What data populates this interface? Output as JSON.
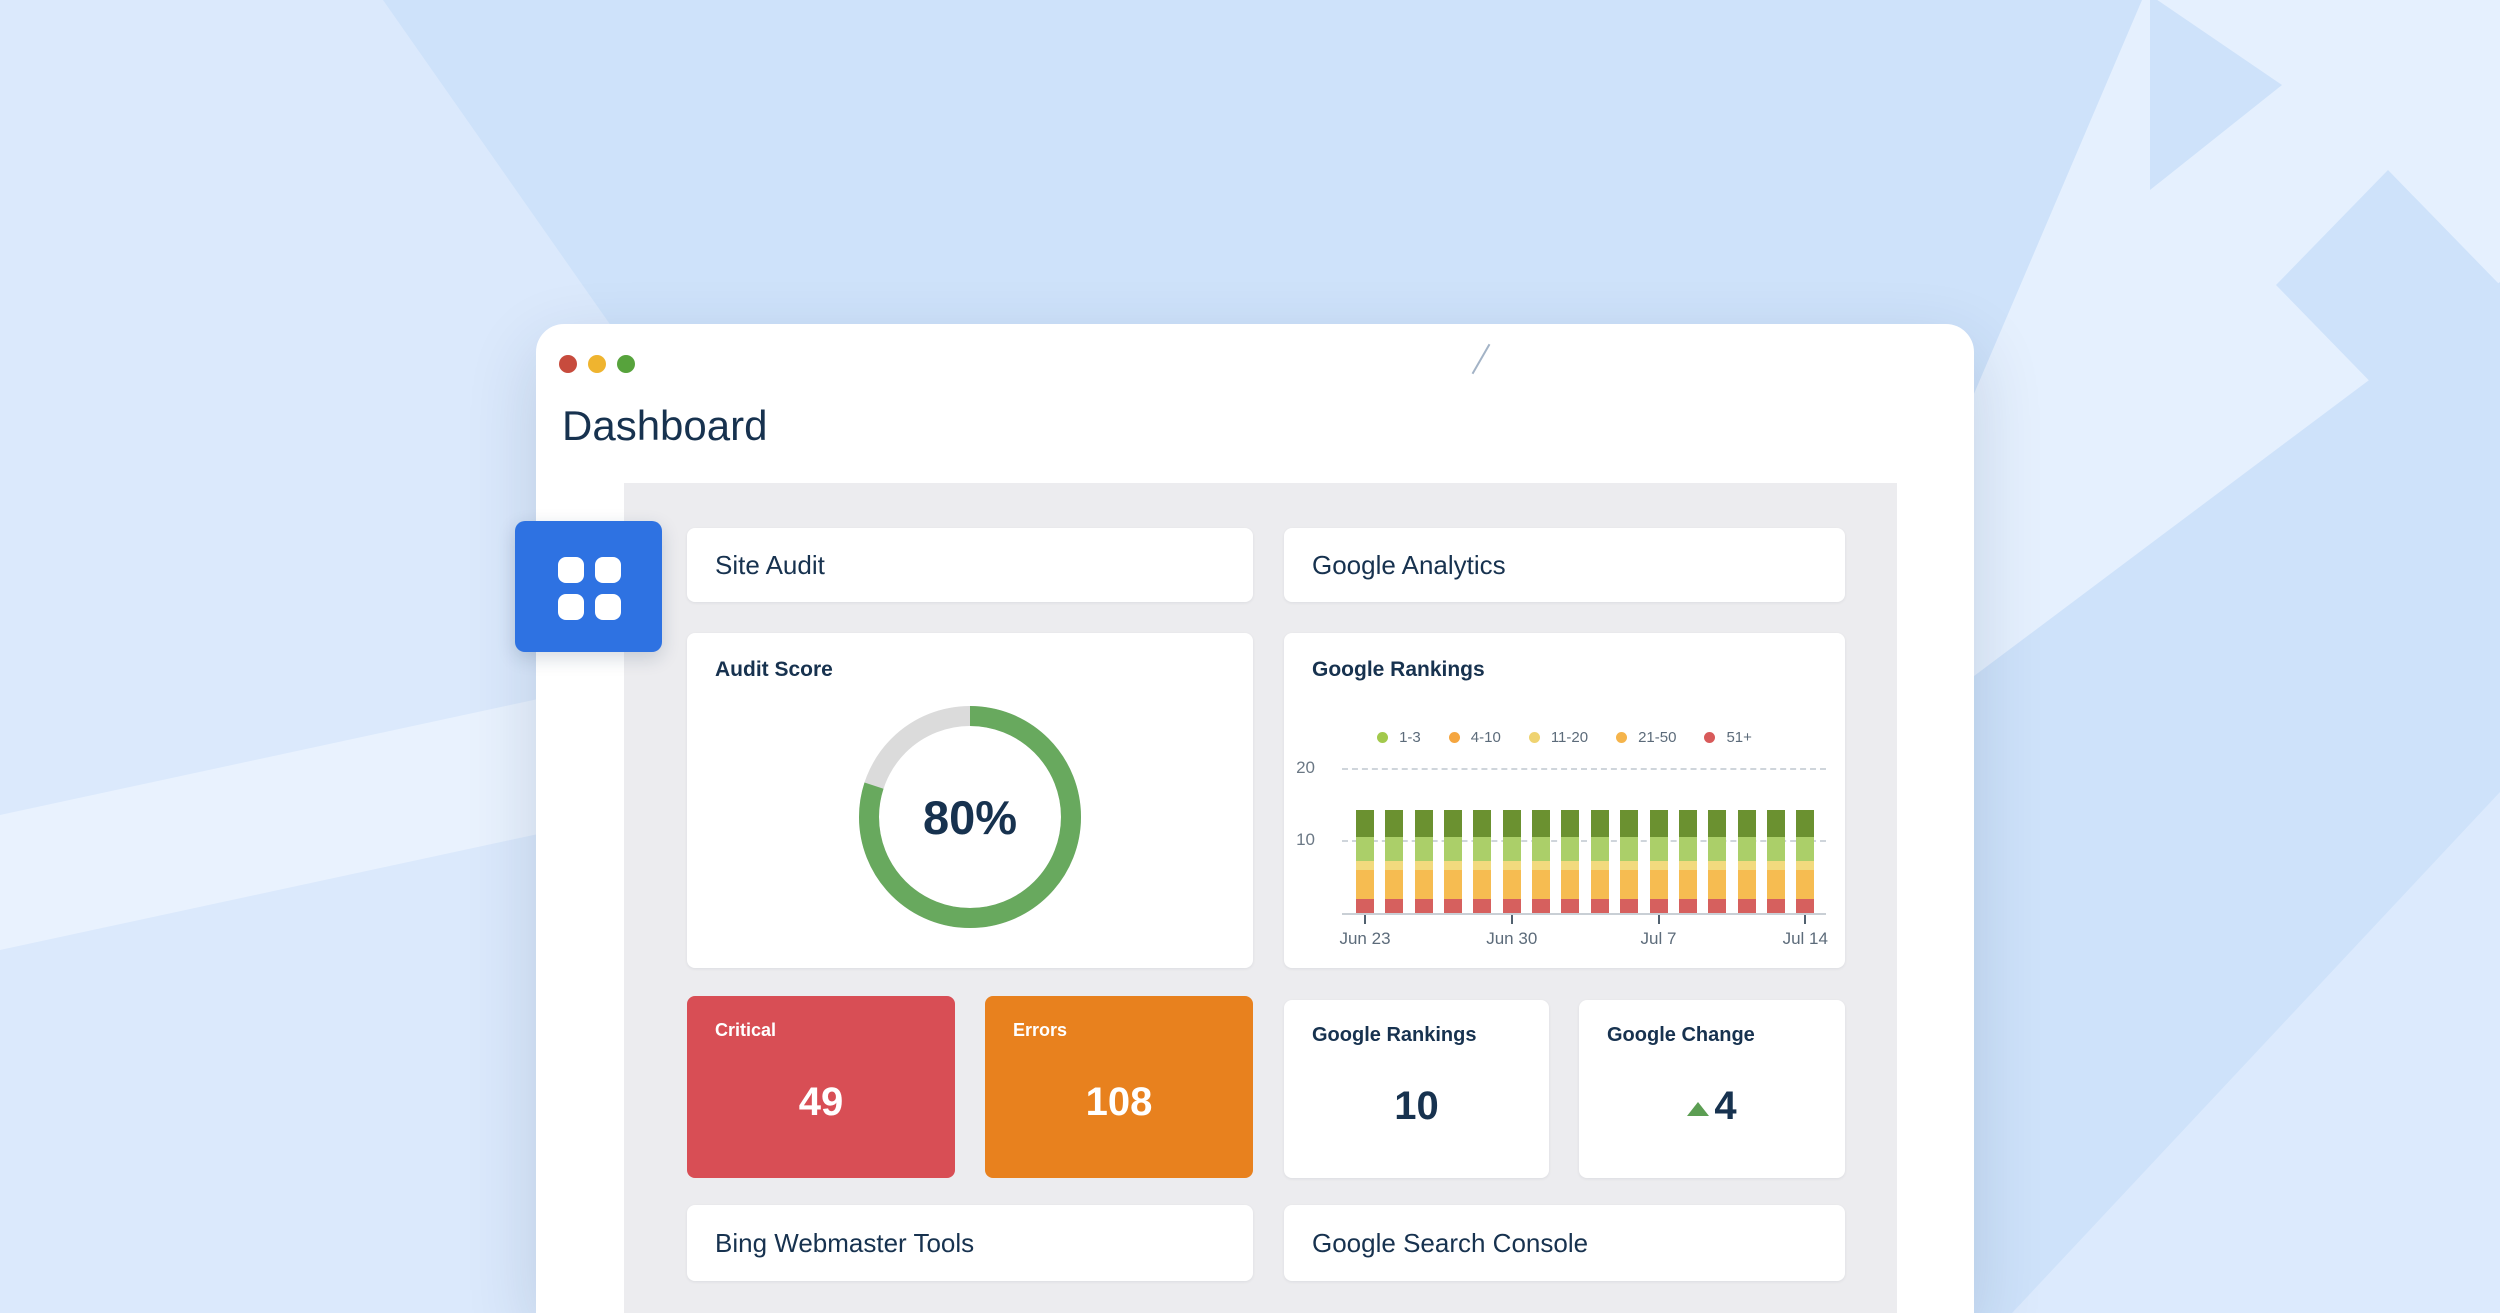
{
  "theme": {
    "page_bg": "#CEE2FA",
    "bg_accent_light": "#DBE9FC",
    "bg_accent_lighter": "#E9F2FE",
    "navy": "#17324F",
    "slate": "#5C6B7A",
    "content_bg": "#ECECEF",
    "accent_blue": "#2E72E2",
    "critical_red": "#D84E55",
    "errors_orange": "#E8811E",
    "donut_green": "#68A95E",
    "donut_track": "#DBDBDB",
    "triangle_green": "#5C9E53"
  },
  "window": {
    "title": "Dashboard",
    "traffic_lights": [
      {
        "name": "close",
        "color": "#C74B3D"
      },
      {
        "name": "minimize",
        "color": "#EFB42F"
      },
      {
        "name": "zoom",
        "color": "#57A33C"
      }
    ]
  },
  "sections": {
    "site_audit": "Site Audit",
    "google_analytics": "Google Analytics",
    "bing": "Bing Webmaster Tools",
    "gsc": "Google Search Console"
  },
  "audit": {
    "title": "Audit Score",
    "score_label": "80%",
    "percent": 80
  },
  "rankings_chart": {
    "title": "Google Rankings"
  },
  "stats": {
    "critical": {
      "label": "Critical",
      "value": "49"
    },
    "errors": {
      "label": "Errors",
      "value": "108"
    },
    "rankings": {
      "label": "Google Rankings",
      "value": "10"
    },
    "change": {
      "label": "Google Change",
      "value": "4",
      "direction": "up"
    }
  },
  "chart_data": [
    {
      "type": "donut",
      "title": "Audit Score",
      "value": 80,
      "label": "80%",
      "color": "#68A95E",
      "track_color": "#DBDBDB",
      "start_angle": "top",
      "direction": "clockwise"
    },
    {
      "type": "bar",
      "subtype": "stacked",
      "title": "Google Rankings",
      "n_bars": 16,
      "x_tick_labels": [
        "Jun 23",
        "Jun 30",
        "Jul 7",
        "Jul 14"
      ],
      "x_tick_bar_indices": [
        0,
        5,
        10,
        15
      ],
      "y_ticks": [
        {
          "label": "20",
          "value": 20
        },
        {
          "label": "10",
          "value": 10
        }
      ],
      "ylim": [
        0,
        20
      ],
      "grid": "dashed",
      "legend_position": "top-center",
      "legend": [
        {
          "label": "1-3",
          "color": "#A2C94C"
        },
        {
          "label": "4-10",
          "color": "#F5A640"
        },
        {
          "label": "11-20",
          "color": "#EFD371"
        },
        {
          "label": "21-50",
          "color": "#F5B44B"
        },
        {
          "label": "51+",
          "color": "#D85A5A"
        }
      ],
      "series_bottom_to_top": [
        {
          "name": "51+",
          "color": "#D6605E",
          "value_per_bar": 1.9
        },
        {
          "name": "21-50",
          "color": "#F6BC51",
          "value_per_bar": 3.9
        },
        {
          "name": "11-20",
          "color": "#F2DA7E",
          "value_per_bar": 1.2
        },
        {
          "name": "4-10",
          "color": "#ABCF69",
          "value_per_bar": 3.2
        },
        {
          "name": "1-3",
          "color": "#6B9130",
          "value_per_bar": 3.7
        }
      ],
      "bar_total": 13.9,
      "note": "all 16 bars are identical stacked columns"
    }
  ]
}
